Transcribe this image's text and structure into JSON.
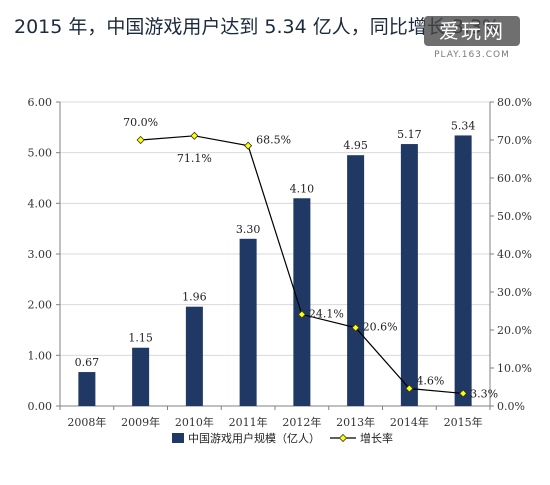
{
  "headline": "2015 年，中国游戏用户达到 5.34 亿人，同比增长 3.3%",
  "watermark": {
    "text": "爱玩网",
    "sub": "PLAY.163.COM"
  },
  "colors": {
    "bar": "#1f3864",
    "line": "#000000",
    "marker": "#ffff00",
    "grid": "#d9d9d9",
    "axis": "#808080"
  },
  "chart_data": {
    "type": "bar",
    "categories": [
      "2008年",
      "2009年",
      "2010年",
      "2011年",
      "2012年",
      "2013年",
      "2014年",
      "2015年"
    ],
    "series": [
      {
        "name": "中国游戏用户规模（亿人）",
        "kind": "bar",
        "axis": "left",
        "values": [
          0.67,
          1.15,
          1.96,
          3.3,
          4.1,
          4.95,
          5.17,
          5.34
        ],
        "labels": [
          "0.67",
          "1.15",
          "1.96",
          "3.30",
          "4.10",
          "4.95",
          "5.17",
          "5.34"
        ]
      },
      {
        "name": "增长率",
        "kind": "line",
        "axis": "right",
        "values": [
          null,
          70.0,
          71.1,
          68.5,
          24.1,
          20.6,
          4.6,
          3.3
        ],
        "labels": [
          "",
          "70.0%",
          "71.1%",
          "68.5%",
          "24.1%",
          "20.6%",
          "4.6%",
          "3.3%"
        ]
      }
    ],
    "left_axis": {
      "ylim": [
        0,
        6
      ],
      "ticks": [
        "0.00",
        "1.00",
        "2.00",
        "3.00",
        "4.00",
        "5.00",
        "6.00"
      ]
    },
    "right_axis": {
      "ylim": [
        0,
        80
      ],
      "ticks": [
        "0.0%",
        "10.0%",
        "20.0%",
        "30.0%",
        "40.0%",
        "50.0%",
        "60.0%",
        "70.0%",
        "80.0%"
      ]
    },
    "grid": true,
    "legend_position": "bottom"
  }
}
